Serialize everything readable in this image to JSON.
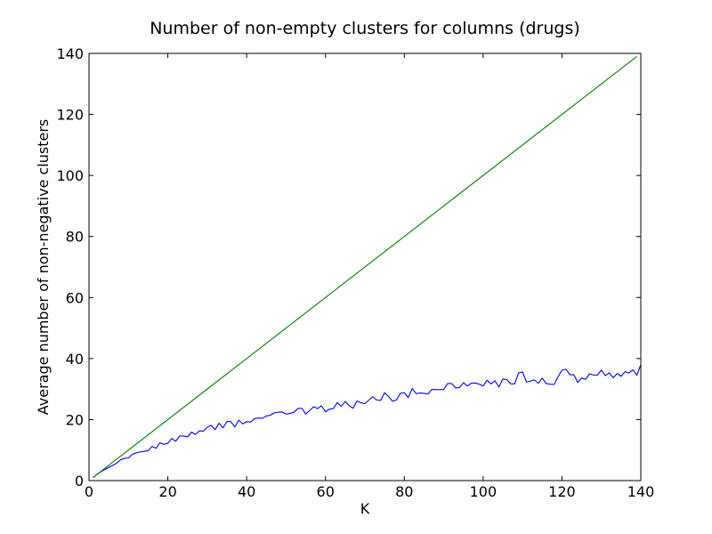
{
  "chart_data": {
    "type": "line",
    "title": "Number of non-empty clusters for columns (drugs)",
    "xlabel": "K",
    "ylabel": "Average number of non-negative clusters",
    "xlim": [
      0,
      140
    ],
    "ylim": [
      0,
      140
    ],
    "xticks": [
      "0",
      "20",
      "40",
      "60",
      "80",
      "100",
      "120",
      "140"
    ],
    "yticks": [
      "0",
      "20",
      "40",
      "60",
      "80",
      "100",
      "120",
      "140"
    ],
    "grid": false,
    "colors": {
      "observed": "#0000ff",
      "reference": "#008000"
    },
    "series": [
      {
        "x": [
          1,
          2,
          3,
          4,
          5,
          6,
          7,
          8,
          9,
          10,
          11,
          12,
          13,
          14,
          15,
          16,
          17,
          18,
          19,
          20,
          21,
          22,
          23,
          24,
          25,
          26,
          27,
          28,
          29,
          30,
          31,
          32,
          33,
          34,
          35,
          36,
          37,
          38,
          39,
          40,
          41,
          42,
          43,
          44,
          45,
          46,
          47,
          48,
          49,
          50,
          51,
          52,
          53,
          54,
          55,
          56,
          57,
          58,
          59,
          60,
          61,
          62,
          63,
          64,
          65,
          66,
          67,
          68,
          69,
          70,
          71,
          72,
          73,
          74,
          75,
          76,
          77,
          78,
          79,
          80,
          81,
          82,
          83,
          84,
          85,
          86,
          87,
          88,
          89,
          90,
          91,
          92,
          93,
          94,
          95,
          96,
          97,
          98,
          99,
          100,
          101,
          102,
          103,
          104,
          105,
          106,
          107,
          108,
          109,
          110,
          111,
          112,
          113,
          114,
          115,
          116,
          117,
          118,
          119,
          120,
          121,
          122,
          123,
          124,
          125,
          126,
          127,
          128,
          129,
          130,
          131,
          132,
          133,
          134,
          135,
          136,
          137,
          138,
          139,
          140
        ],
        "values": [
          1,
          2,
          2.9,
          3.6,
          4.3,
          5,
          5.7,
          6.8,
          7.3,
          7.4,
          8.6,
          9.1,
          9.4,
          9.6,
          9.8,
          11.2,
          10.6,
          12.4,
          11.9,
          12.2,
          13.8,
          12.9,
          14.6,
          14.6,
          14.3,
          15.9,
          15.1,
          16.3,
          16.2,
          17.5,
          18.1,
          16.7,
          18.8,
          17.3,
          19.4,
          19.3,
          17.6,
          19.8,
          18.6,
          19.3,
          19.2,
          20.3,
          20.5,
          20.4,
          21.2,
          21.4,
          22.2,
          22.4,
          22.5,
          21.8,
          22,
          22.4,
          23.6,
          23.7,
          21.8,
          23,
          24.2,
          23.6,
          24.5,
          22.6,
          23.4,
          23.6,
          25.6,
          24.3,
          25.9,
          24.6,
          23.7,
          26.1,
          25.5,
          25.2,
          26.4,
          27.5,
          26.4,
          26.3,
          28.8,
          27.6,
          26,
          26.4,
          28.6,
          28.8,
          27.2,
          30.2,
          28.5,
          28.7,
          28.6,
          28.4,
          29.9,
          29.8,
          29.8,
          29.9,
          31.8,
          31.8,
          30.4,
          30.5,
          32.1,
          31,
          31.9,
          32,
          31.6,
          31,
          32.9,
          31.7,
          32.7,
          30.7,
          33.3,
          33.1,
          31.7,
          31.7,
          35.3,
          35.6,
          32.3,
          32.6,
          33,
          31.9,
          33.6,
          31.8,
          31.6,
          31.5,
          34,
          36.2,
          36.5,
          34.7,
          34.7,
          32.2,
          33.6,
          33.2,
          35,
          34.6,
          34.6,
          36.2,
          34.4,
          35.3,
          33.7,
          35.1,
          34.2,
          35.7,
          35.3,
          36.3,
          34.5,
          38
        ]
      },
      {
        "x": [
          1,
          139
        ],
        "values": [
          1,
          139
        ]
      }
    ]
  }
}
